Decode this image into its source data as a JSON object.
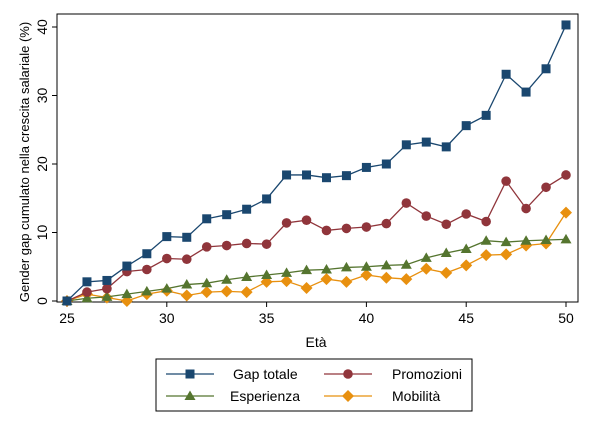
{
  "chart_data": {
    "type": "line",
    "xlabel": "Età",
    "ylabel": "Gender gap cumulato nella crescita salariale (%)",
    "xlim": [
      25,
      50
    ],
    "ylim": [
      0,
      40
    ],
    "xticks": [
      "25",
      "30",
      "35",
      "40",
      "45",
      "50"
    ],
    "yticks": [
      "0",
      "10",
      "20",
      "30",
      "40"
    ],
    "grid": false,
    "legend": "bottom, outside plot, 2 columns",
    "x": [
      25,
      26,
      27,
      28,
      29,
      30,
      31,
      32,
      33,
      34,
      35,
      36,
      37,
      38,
      39,
      40,
      41,
      42,
      43,
      44,
      45,
      46,
      47,
      48,
      49,
      50
    ],
    "series": [
      {
        "name": "Gap totale",
        "color": "#1a476f",
        "marker": "square",
        "values": [
          0.0,
          2.8,
          3.0,
          5.1,
          6.9,
          9.4,
          9.3,
          12.0,
          12.6,
          13.4,
          14.9,
          18.4,
          18.4,
          18.0,
          18.3,
          19.5,
          20.0,
          22.8,
          23.2,
          22.5,
          25.6,
          27.1,
          33.1,
          30.5,
          33.9,
          40.3
        ]
      },
      {
        "name": "Promozioni",
        "color": "#90353b",
        "marker": "circle",
        "values": [
          0.0,
          1.3,
          1.8,
          4.3,
          4.6,
          6.2,
          6.1,
          7.9,
          8.1,
          8.4,
          8.3,
          11.4,
          11.8,
          10.3,
          10.6,
          10.8,
          11.3,
          14.3,
          12.4,
          11.2,
          12.7,
          11.6,
          17.5,
          13.5,
          16.6,
          18.4
        ]
      },
      {
        "name": "Esperienza",
        "color": "#55752f",
        "marker": "triangle",
        "values": [
          0.0,
          0.4,
          0.6,
          1.0,
          1.4,
          1.8,
          2.4,
          2.6,
          3.1,
          3.5,
          3.8,
          4.1,
          4.5,
          4.6,
          4.9,
          5.0,
          5.2,
          5.3,
          6.3,
          7.0,
          7.6,
          8.8,
          8.6,
          8.8,
          8.9,
          9.0
        ]
      },
      {
        "name": "Mobilità",
        "color": "#e8900f",
        "marker": "diamond",
        "values": [
          0.0,
          1.0,
          0.5,
          0.0,
          1.0,
          1.5,
          0.8,
          1.3,
          1.4,
          1.3,
          2.8,
          2.9,
          1.9,
          3.2,
          2.8,
          3.8,
          3.4,
          3.2,
          4.7,
          4.1,
          5.2,
          6.7,
          6.8,
          8.1,
          8.4,
          12.9
        ]
      }
    ]
  }
}
